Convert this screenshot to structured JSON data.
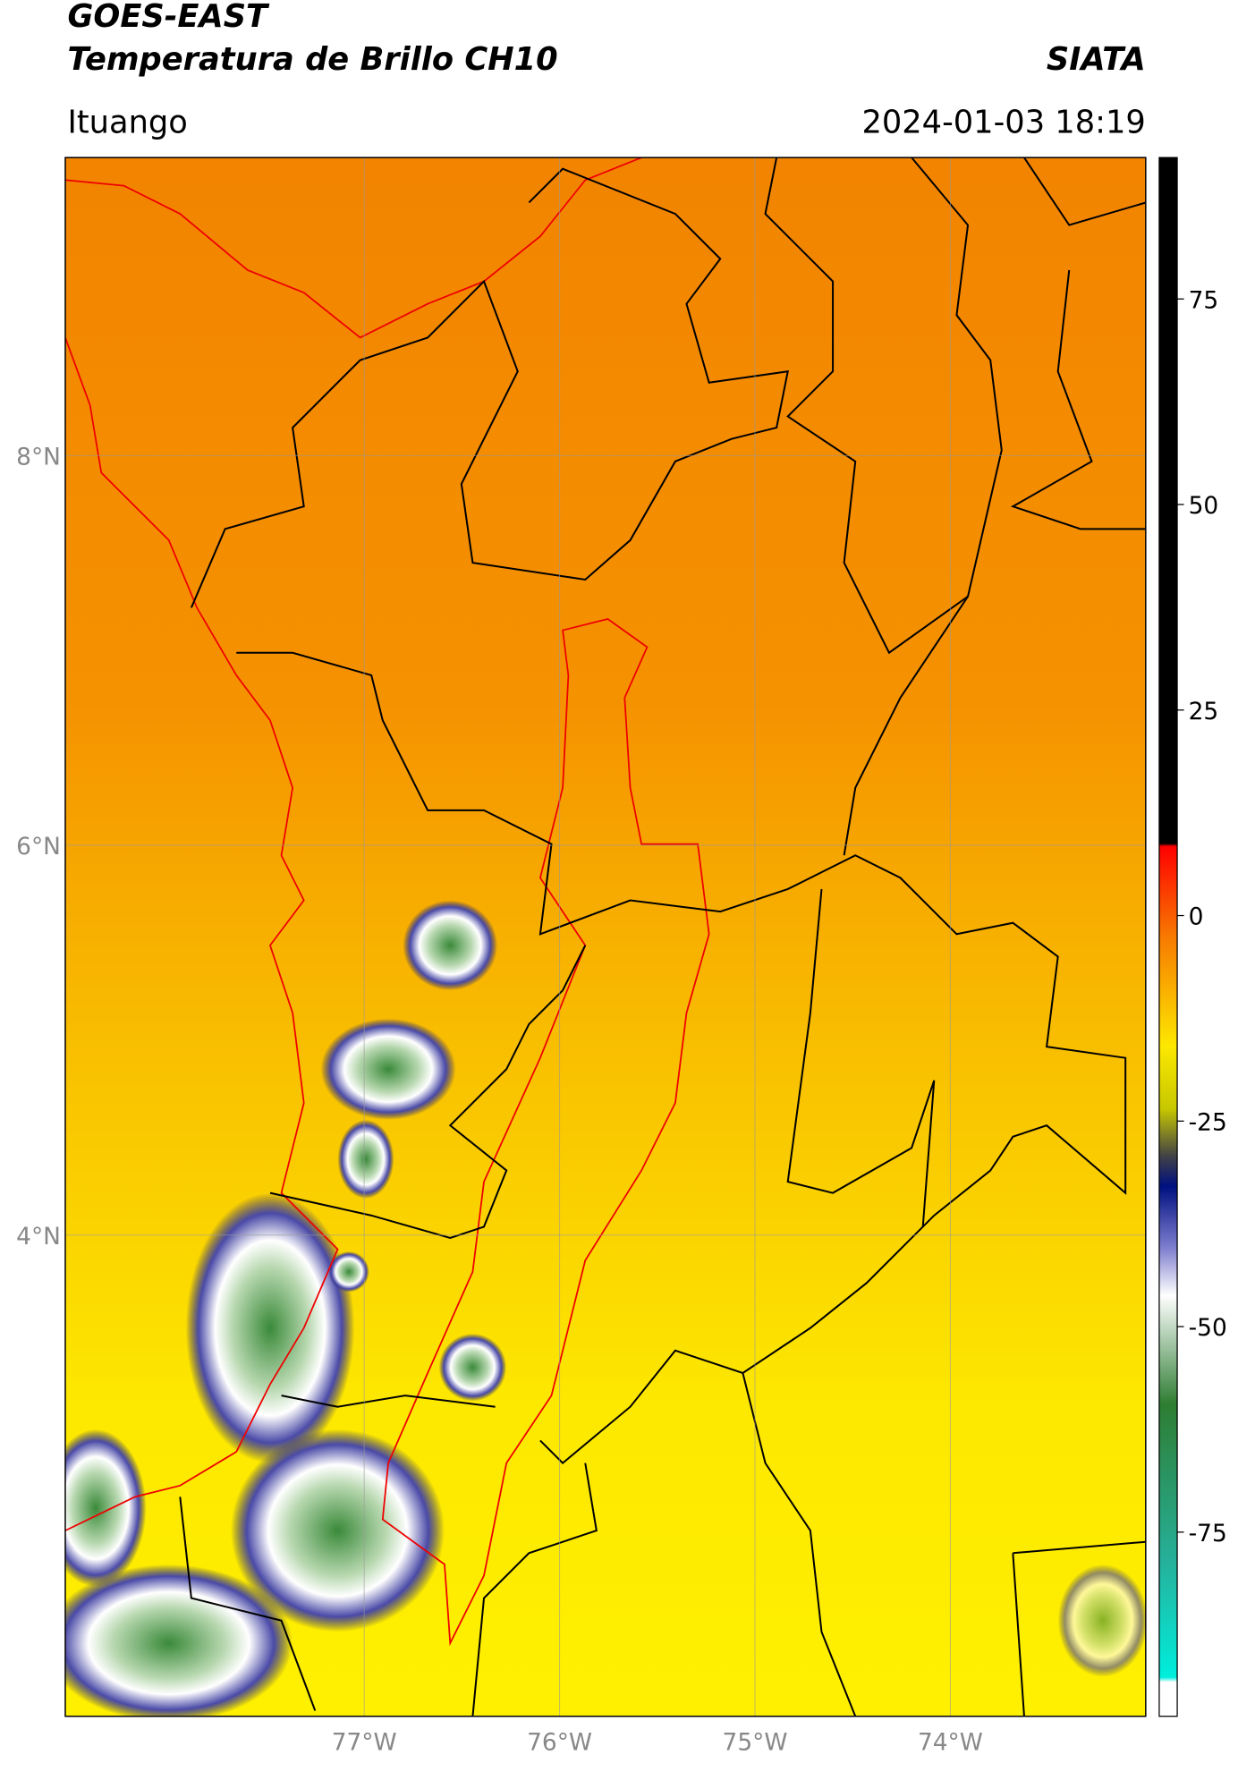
{
  "header": {
    "satellite": "GOES-EAST",
    "product": "Temperatura de Brillo CH10",
    "brand": "SIATA",
    "location": "Ituango",
    "timestamp": "2024-01-03 18:19"
  },
  "map": {
    "latlim": [
      1.53,
      9.53
    ],
    "lonlim": [
      -78.53,
      -73.0
    ],
    "lat_ticks": [
      {
        "value": 8,
        "label": "8°N"
      },
      {
        "value": 6,
        "label": "6°N"
      },
      {
        "value": 4,
        "label": "4°N"
      }
    ],
    "lon_ticks": [
      {
        "value": -77,
        "label": "77°W"
      },
      {
        "value": -76,
        "label": "76°W"
      },
      {
        "value": -75,
        "label": "75°W"
      },
      {
        "value": -74,
        "label": "74°W"
      }
    ]
  },
  "colorbar": {
    "lim": [
      -97.4,
      92.2
    ],
    "ticks": [
      75,
      50,
      25,
      0,
      -25,
      -50,
      -75
    ]
  }
}
